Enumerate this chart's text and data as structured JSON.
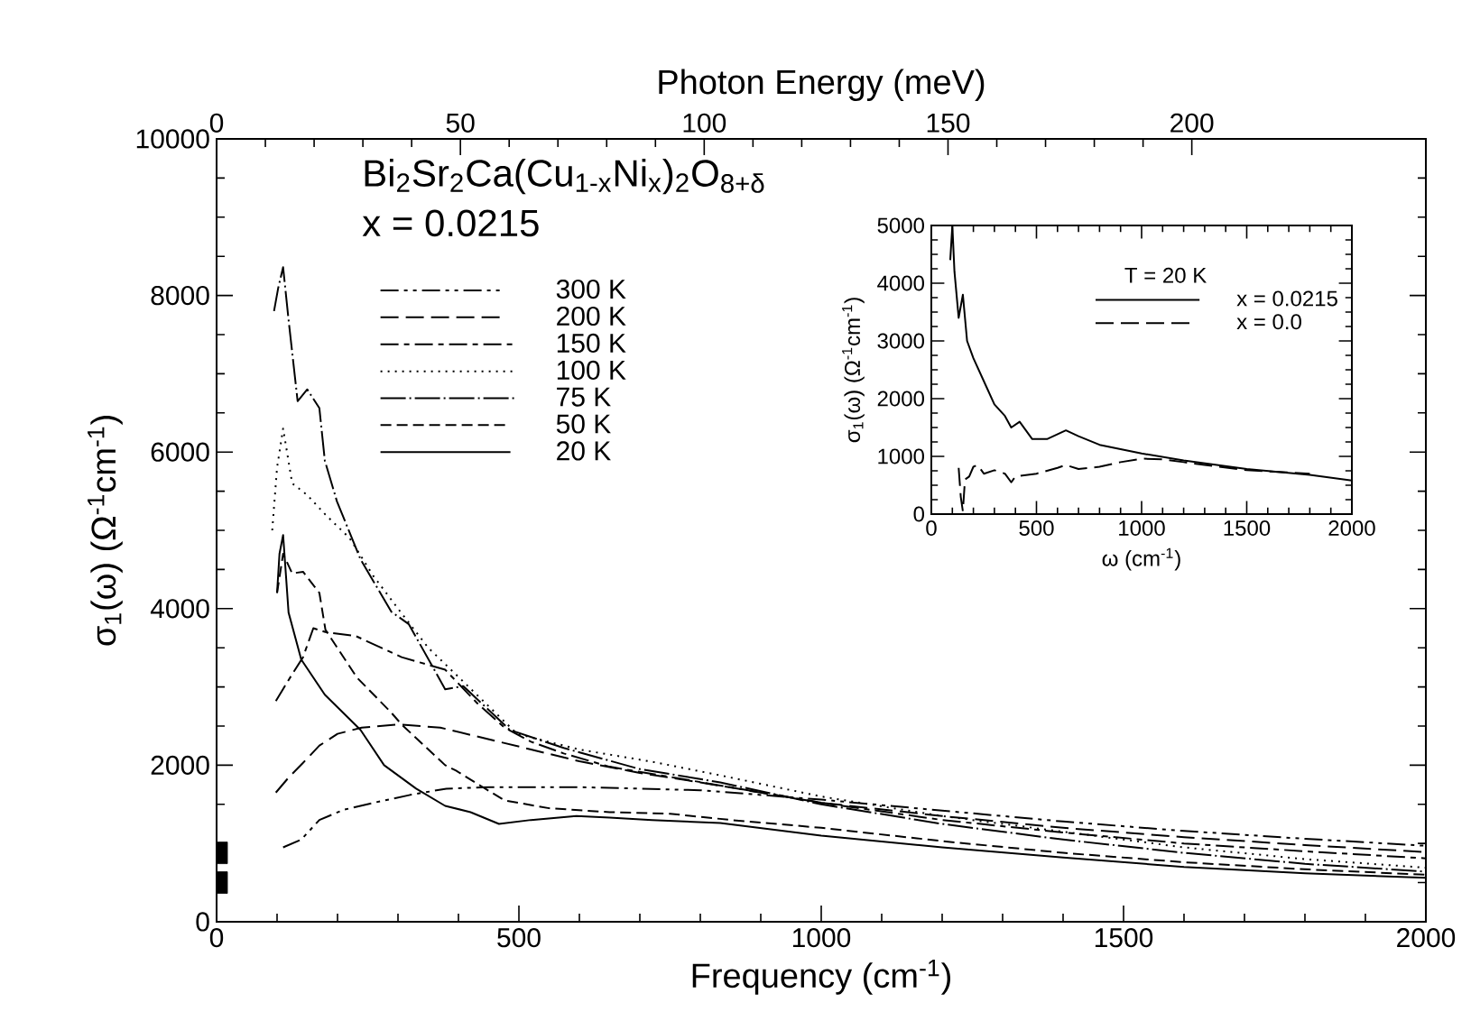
{
  "chart_data": [
    {
      "type": "line",
      "xlabel": "Frequency (cm$^{-1}$)",
      "ylabel": "σ$_{1}$(ω)  (Ω$^{-1}$cm$^{-1}$)",
      "x2label": "Photon Energy (meV)",
      "xlim": [
        0,
        2000
      ],
      "ylim": [
        0,
        10000
      ],
      "xticks": [
        0,
        500,
        1000,
        1500,
        2000
      ],
      "yticks": [
        0,
        2000,
        4000,
        6000,
        8000,
        10000
      ],
      "x2lim": [
        0,
        248
      ],
      "x2ticks": [
        0,
        50,
        100,
        150,
        200
      ],
      "legend": "top left",
      "grid": false,
      "annotations": [
        "Bi$_{2}$Sr$_{2}$Ca(Cu$_{1-x}$Ni$_{x}$)$_{2}$O$_{8+δ}$",
        "x = 0.0215"
      ],
      "series": [
        {
          "name": "300 K",
          "color": "#000000",
          "line_style": "dashdotdotted",
          "x": [
            110,
            140,
            170,
            210,
            260,
            320,
            380,
            450,
            520,
            600,
            700,
            800,
            1000,
            1200,
            1400,
            1600,
            1800,
            2000
          ],
          "values": [
            950,
            1050,
            1300,
            1430,
            1520,
            1620,
            1700,
            1720,
            1720,
            1720,
            1700,
            1680,
            1560,
            1420,
            1280,
            1160,
            1060,
            970
          ]
        },
        {
          "name": "200 K",
          "color": "#000000",
          "line_style": "loosely dashed",
          "x": [
            98,
            120,
            143,
            170,
            200,
            240,
            300,
            370,
            440,
            520,
            600,
            700,
            800,
            1000,
            1200,
            1400,
            1600,
            1800,
            2000
          ],
          "values": [
            1650,
            1850,
            2030,
            2250,
            2400,
            2480,
            2520,
            2480,
            2350,
            2200,
            2050,
            1900,
            1780,
            1520,
            1350,
            1200,
            1080,
            980,
            890
          ]
        },
        {
          "name": "150 K",
          "color": "#000000",
          "line_style": "dashdotted",
          "x": [
            98,
            120,
            143,
            160,
            180,
            230,
            306,
            378,
            430,
            476,
            520,
            574,
            650,
            750,
            833,
            1000,
            1200,
            1400,
            1600,
            1800,
            2000
          ],
          "values": [
            2820,
            3100,
            3380,
            3750,
            3700,
            3650,
            3380,
            3220,
            2800,
            2480,
            2300,
            2150,
            1980,
            1850,
            1740,
            1520,
            1300,
            1140,
            1000,
            900,
            810
          ]
        },
        {
          "name": "100 K",
          "color": "#000000",
          "line_style": "dotted",
          "x": [
            92,
            100,
            110,
            125,
            150,
            180,
            220,
            259,
            300,
            350,
            417,
            497,
            600,
            723,
            833,
            1000,
            1200,
            1400,
            1600,
            1800,
            2000
          ],
          "values": [
            5000,
            5800,
            6300,
            5600,
            5450,
            5200,
            4900,
            4420,
            4000,
            3500,
            3000,
            2400,
            2200,
            2040,
            1870,
            1600,
            1350,
            1150,
            950,
            800,
            690
          ]
        },
        {
          "name": "75 K",
          "color": "#000000",
          "line_style": "long dashdotted",
          "x": [
            95,
            102,
            110,
            119,
            134,
            150,
            170,
            179,
            199,
            238,
            289,
            318,
            378,
            408,
            485,
            574,
            700,
            833,
            1000,
            1200,
            1400,
            1600,
            1800,
            2000
          ],
          "values": [
            7800,
            8100,
            8360,
            7690,
            6650,
            6800,
            6560,
            5890,
            5370,
            4630,
            3960,
            3800,
            2970,
            3010,
            2450,
            2220,
            1950,
            1780,
            1500,
            1250,
            1050,
            880,
            740,
            640
          ]
        },
        {
          "name": "50 K",
          "color": "#000000",
          "line_style": "dashed",
          "x": [
            100,
            110,
            125,
            143,
            170,
            180,
            232,
            289,
            306,
            378,
            396,
            476,
            550,
            650,
            750,
            850,
            1000,
            1200,
            1400,
            1600,
            1800,
            2000
          ],
          "values": [
            4200,
            4700,
            4450,
            4470,
            4200,
            3730,
            3120,
            2670,
            2520,
            2000,
            1930,
            1550,
            1450,
            1400,
            1380,
            1300,
            1200,
            1030,
            880,
            760,
            670,
            600
          ]
        },
        {
          "name": "20 K",
          "color": "#000000",
          "line_style": "solid",
          "x": [
            100,
            104,
            110,
            119,
            140,
            179,
            238,
            277,
            330,
            378,
            420,
            467,
            520,
            595,
            650,
            720,
            833,
            1000,
            1200,
            1400,
            1600,
            1800,
            2000
          ],
          "values": [
            4200,
            4700,
            4940,
            3950,
            3350,
            2900,
            2450,
            2000,
            1700,
            1480,
            1400,
            1250,
            1300,
            1350,
            1330,
            1300,
            1260,
            1100,
            950,
            820,
            700,
            620,
            560
          ]
        },
        {
          "type": "scatter",
          "marker": "square",
          "color": "#000000",
          "x": [
            0,
            0
          ],
          "values": [
            880,
            500
          ]
        }
      ]
    },
    {
      "type": "line",
      "xlabel": "ω (cm$^{-1}$)",
      "ylabel": "σ$_{1}$(ω)  (Ω$^{-1}$cm$^{-1}$)",
      "xlim": [
        0,
        2000
      ],
      "ylim": [
        0,
        5000
      ],
      "xticks": [
        0,
        500,
        1000,
        1500,
        2000
      ],
      "yticks": [
        0,
        1000,
        2000,
        3000,
        4000,
        5000
      ],
      "legend": "top right",
      "legend_title": "T = 20 K",
      "grid": false,
      "series": [
        {
          "name": "x = 0.0215",
          "color": "#000000",
          "line_style": "solid",
          "x": [
            90,
            100,
            110,
            130,
            150,
            170,
            200,
            250,
            300,
            350,
            380,
            420,
            480,
            550,
            640,
            700,
            800,
            1000,
            1200,
            1500,
            1800,
            2000
          ],
          "values": [
            4400,
            5000,
            4200,
            3400,
            3800,
            3000,
            2700,
            2300,
            1900,
            1700,
            1500,
            1600,
            1300,
            1300,
            1450,
            1350,
            1200,
            1050,
            930,
            780,
            680,
            580
          ]
        },
        {
          "name": "x = 0.0",
          "color": "#000000",
          "line_style": "loosely dashed",
          "x": [
            130,
            140,
            150,
            160,
            180,
            200,
            220,
            250,
            300,
            350,
            380,
            400,
            500,
            550,
            600,
            640,
            700,
            800,
            900,
            1000,
            1100,
            1200,
            1300,
            1500,
            1700,
            1800
          ],
          "values": [
            800,
            300,
            50,
            600,
            650,
            820,
            850,
            700,
            760,
            700,
            550,
            650,
            700,
            750,
            800,
            850,
            780,
            820,
            900,
            960,
            950,
            900,
            850,
            760,
            720,
            700
          ]
        }
      ]
    }
  ]
}
